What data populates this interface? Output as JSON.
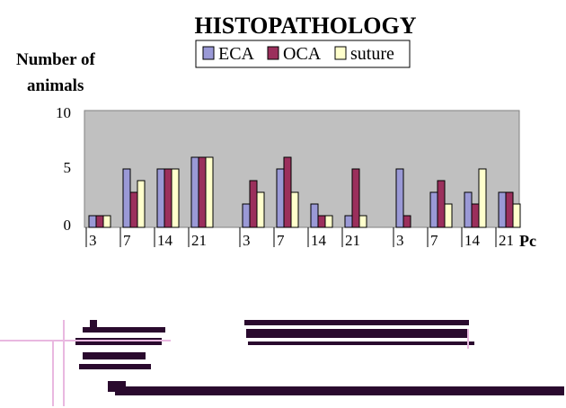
{
  "chart_data": {
    "type": "bar",
    "title": "HISTOPATHOLOGY",
    "ylabel_line1": "Number of",
    "ylabel_line2": "animals",
    "xunit_partial": "Pc",
    "ylim": [
      0,
      10
    ],
    "yticks": [
      "0",
      "5",
      "10"
    ],
    "grid": false,
    "legend_position": "top-center",
    "groups": [
      {
        "categories": [
          "3",
          "7",
          "14",
          "21"
        ],
        "values": {
          "ECA": [
            1,
            5,
            5,
            6
          ],
          "OCA": [
            1,
            3,
            5,
            6
          ],
          "suture": [
            1,
            4,
            5,
            6
          ]
        }
      },
      {
        "categories": [
          "3",
          "7",
          "14",
          "21"
        ],
        "values": {
          "ECA": [
            2,
            5,
            2,
            1
          ],
          "OCA": [
            4,
            6,
            1,
            5
          ],
          "suture": [
            3,
            3,
            1,
            1
          ]
        }
      },
      {
        "categories": [
          "3",
          "7",
          "14",
          "21"
        ],
        "values": {
          "ECA": [
            5,
            3,
            3,
            3
          ],
          "OCA": [
            1,
            4,
            2,
            3
          ],
          "suture": [
            0,
            2,
            5,
            2
          ]
        }
      }
    ],
    "series": [
      {
        "name": "ECA",
        "color": "#9a99d6"
      },
      {
        "name": "OCA",
        "color": "#9b2f5c"
      },
      {
        "name": "suture",
        "color": "#ffffcc"
      }
    ]
  }
}
